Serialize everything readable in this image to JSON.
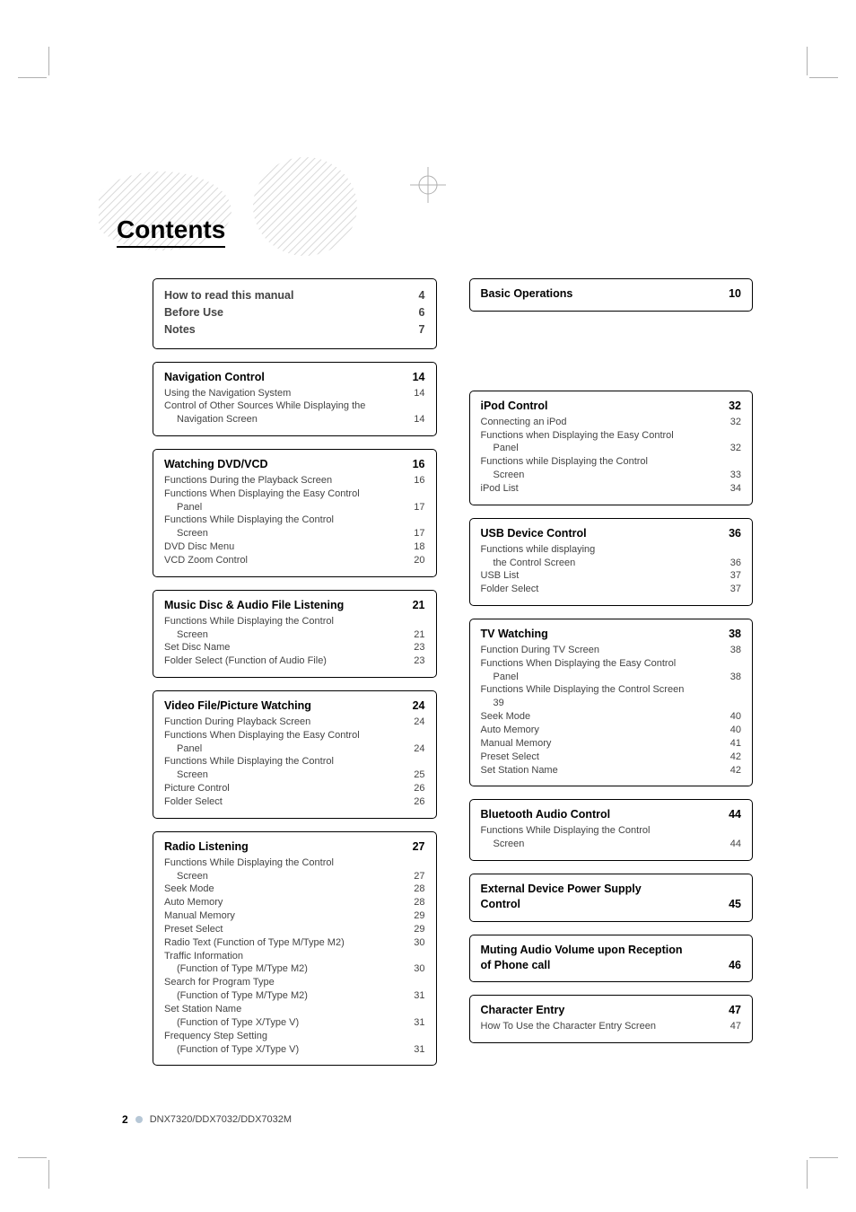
{
  "title": "Contents",
  "footer": {
    "page_number": "2",
    "model": "DNX7320/DDX7032/DDX7032M"
  },
  "left": {
    "top": [
      {
        "label": "How to read this manual",
        "page": "4"
      },
      {
        "label": "Before Use",
        "page": "6"
      },
      {
        "label": "Notes",
        "page": "7"
      }
    ],
    "boxes": [
      {
        "head": "Navigation Control",
        "head_page": "14",
        "rows": [
          {
            "label": "Using the Navigation System",
            "page": "14"
          },
          {
            "label": "Control of Other Sources While Displaying the",
            "page": ""
          },
          {
            "label": "Navigation Screen",
            "page": "14",
            "indent": 1
          }
        ]
      },
      {
        "head": "Watching DVD/VCD",
        "head_page": "16",
        "rows": [
          {
            "label": "Functions During the Playback Screen",
            "page": "16"
          },
          {
            "label": "Functions When Displaying the Easy Control",
            "page": ""
          },
          {
            "label": "Panel",
            "page": "17",
            "indent": 1
          },
          {
            "label": "Functions While Displaying the Control",
            "page": ""
          },
          {
            "label": "Screen",
            "page": "17",
            "indent": 1
          },
          {
            "label": "DVD Disc Menu",
            "page": "18"
          },
          {
            "label": "VCD Zoom Control",
            "page": "20"
          }
        ]
      },
      {
        "head": "Music Disc & Audio File Listening",
        "head_page": "21",
        "rows": [
          {
            "label": "Functions While Displaying the Control",
            "page": ""
          },
          {
            "label": "Screen",
            "page": "21",
            "indent": 1
          },
          {
            "label": "Set Disc Name",
            "page": "23"
          },
          {
            "label": "Folder Select (Function of Audio File)",
            "page": "23"
          }
        ]
      },
      {
        "head": "Video File/Picture Watching",
        "head_page": "24",
        "rows": [
          {
            "label": "Function During Playback Screen",
            "page": "24"
          },
          {
            "label": "Functions When Displaying the Easy Control",
            "page": ""
          },
          {
            "label": "Panel",
            "page": "24",
            "indent": 1
          },
          {
            "label": "Functions While Displaying the Control",
            "page": ""
          },
          {
            "label": "Screen",
            "page": "25",
            "indent": 1
          },
          {
            "label": "Picture Control",
            "page": "26"
          },
          {
            "label": "Folder Select",
            "page": "26"
          }
        ]
      },
      {
        "head": "Radio Listening",
        "head_page": "27",
        "rows": [
          {
            "label": "Functions While Displaying the Control",
            "page": ""
          },
          {
            "label": "Screen",
            "page": "27",
            "indent": 1
          },
          {
            "label": "Seek Mode",
            "page": "28"
          },
          {
            "label": "Auto Memory",
            "page": "28"
          },
          {
            "label": "Manual Memory",
            "page": "29"
          },
          {
            "label": "Preset Select",
            "page": "29"
          },
          {
            "label": "Radio Text (Function of Type M/Type M2)",
            "page": "30"
          },
          {
            "label": "Traffic Information",
            "page": ""
          },
          {
            "label": "(Function of Type M/Type M2)",
            "page": "30",
            "indent": 1
          },
          {
            "label": "Search for Program Type",
            "page": ""
          },
          {
            "label": "(Function of Type M/Type M2)",
            "page": "31",
            "indent": 1
          },
          {
            "label": "Set Station Name",
            "page": ""
          },
          {
            "label": "(Function of Type X/Type V)",
            "page": "31",
            "indent": 1
          },
          {
            "label": "Frequency Step Setting",
            "page": ""
          },
          {
            "label": "(Function of Type X/Type V)",
            "page": "31",
            "indent": 1
          }
        ]
      }
    ]
  },
  "right": {
    "top_box": {
      "head": "Basic Operations",
      "head_page": "10"
    },
    "boxes": [
      {
        "head": "iPod Control",
        "head_page": "32",
        "rows": [
          {
            "label": "Connecting an iPod",
            "page": "32"
          },
          {
            "label": "Functions when Displaying the Easy Control",
            "page": ""
          },
          {
            "label": "Panel",
            "page": "32",
            "indent": 1
          },
          {
            "label": "Functions while Displaying the Control",
            "page": ""
          },
          {
            "label": "Screen",
            "page": "33",
            "indent": 1
          },
          {
            "label": "iPod List",
            "page": "34"
          }
        ]
      },
      {
        "head": "USB Device Control",
        "head_page": "36",
        "rows": [
          {
            "label": "Functions while displaying",
            "page": ""
          },
          {
            "label": "the Control Screen",
            "page": "36",
            "indent": 1
          },
          {
            "label": "USB List",
            "page": "37"
          },
          {
            "label": "Folder Select",
            "page": "37"
          }
        ]
      },
      {
        "head": "TV Watching",
        "head_page": "38",
        "rows": [
          {
            "label": "Function During TV Screen",
            "page": "38"
          },
          {
            "label": "Functions When Displaying the Easy Control",
            "page": ""
          },
          {
            "label": "Panel",
            "page": "38",
            "indent": 1
          },
          {
            "label": "Functions While Displaying the Control Screen",
            "page": ""
          },
          {
            "label": "39",
            "page": "",
            "indent": 1
          },
          {
            "label": "Seek Mode",
            "page": "40"
          },
          {
            "label": "Auto Memory",
            "page": "40"
          },
          {
            "label": "Manual Memory",
            "page": "41"
          },
          {
            "label": "Preset Select",
            "page": "42"
          },
          {
            "label": "Set Station Name",
            "page": "42"
          }
        ]
      },
      {
        "head": "Bluetooth Audio Control",
        "head_page": "44",
        "rows": [
          {
            "label": "Functions While Displaying the Control",
            "page": ""
          },
          {
            "label": "Screen",
            "page": "44",
            "indent": 1
          }
        ]
      },
      {
        "head_multi": [
          "External Device Power Supply",
          "Control"
        ],
        "head_page": "45",
        "rows": []
      },
      {
        "head_multi": [
          "Muting Audio Volume upon Reception",
          "of Phone call"
        ],
        "head_page": "46",
        "rows": []
      },
      {
        "head": "Character Entry",
        "head_page": "47",
        "rows": [
          {
            "label": "How To Use the Character Entry Screen",
            "page": "47"
          }
        ]
      }
    ]
  }
}
